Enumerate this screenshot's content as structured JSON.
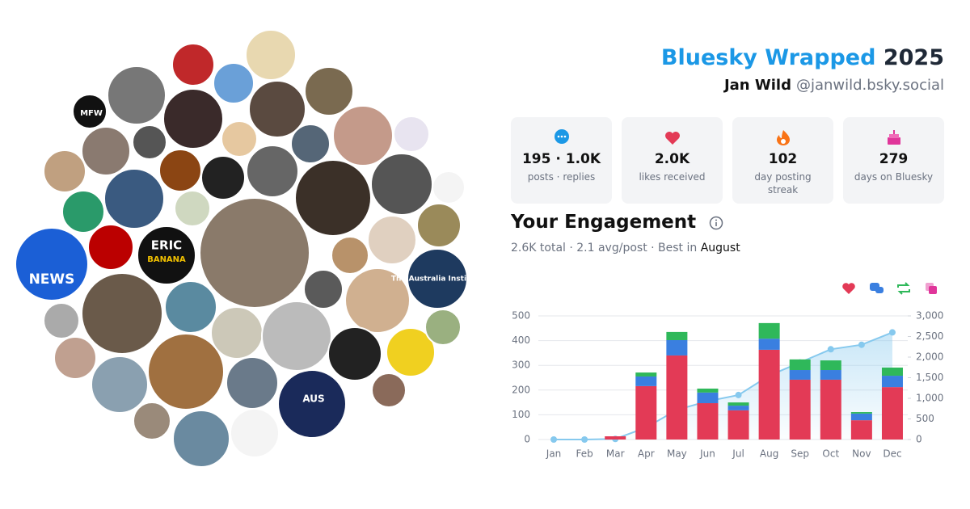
{
  "header": {
    "title": "Bluesky Wrapped",
    "year": "2025",
    "name": "Jan Wild",
    "handle": "@janwild.bsky.social"
  },
  "avatar_labels": [
    "NEWS",
    "MFW",
    "ERIC",
    "BANANA",
    "The Australia Institute",
    "AUS"
  ],
  "stats": [
    {
      "value": "195 · 1.0K",
      "label": "posts · replies"
    },
    {
      "value": "2.0K",
      "label": "likes received"
    },
    {
      "value": "102",
      "label": "day posting streak"
    },
    {
      "value": "279",
      "label": "days on Bluesky"
    }
  ],
  "engagement": {
    "title": "Your Engagement",
    "summary": "2.6K total · 2.1 avg/post · Best in",
    "best_month": "August"
  },
  "chart_data": {
    "type": "bar",
    "stacked": true,
    "grid": true,
    "categories": [
      "Jan",
      "Feb",
      "Mar",
      "Apr",
      "May",
      "Jun",
      "Jul",
      "Aug",
      "Sep",
      "Oct",
      "Nov",
      "Dec"
    ],
    "series": [
      {
        "color": "#e33a56",
        "values": [
          0,
          0,
          13,
          216,
          340,
          147,
          118,
          363,
          242,
          242,
          78,
          212
        ]
      },
      {
        "color": "#3a7fe0",
        "values": [
          0,
          0,
          0,
          39,
          62,
          43,
          19,
          45,
          39,
          39,
          27,
          46
        ]
      },
      {
        "color": "#2fb85a",
        "values": [
          0,
          0,
          0,
          16,
          33,
          16,
          13,
          63,
          43,
          39,
          6,
          33
        ]
      },
      {
        "color": "#86c9ee",
        "axis": "y2",
        "values": [
          0,
          0,
          15,
          290,
          720,
          930,
          1080,
          1550,
          1870,
          2190,
          2300,
          2600
        ]
      }
    ],
    "ylim": [
      0,
      500
    ],
    "yticks": [
      0,
      100,
      200,
      300,
      400,
      500
    ],
    "y2lim": [
      0,
      3000
    ],
    "y2ticks": [
      0,
      500,
      {
        "value": 1000,
        "label": "1,000"
      },
      {
        "value": 1500,
        "label": "1,500"
      },
      {
        "value": 2000,
        "label": "2,000"
      },
      {
        "value": 2500,
        "label": "2,500"
      },
      {
        "value": 3000,
        "label": "3,000"
      }
    ]
  }
}
